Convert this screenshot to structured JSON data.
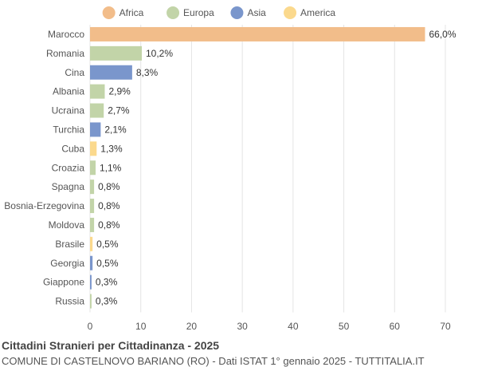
{
  "chart_data": {
    "type": "bar",
    "orientation": "horizontal",
    "title": "Cittadini Stranieri per Cittadinanza - 2025",
    "subtitle": "COMUNE DI CASTELNOVO BARIANO (RO) - Dati ISTAT 1° gennaio 2025 - TUTTITALIA.IT",
    "categories": [
      "Marocco",
      "Romania",
      "Cina",
      "Albania",
      "Ucraina",
      "Turchia",
      "Cuba",
      "Croazia",
      "Spagna",
      "Bosnia-Erzegovina",
      "Moldova",
      "Brasile",
      "Georgia",
      "Giappone",
      "Russia"
    ],
    "values": [
      66.0,
      10.2,
      8.3,
      2.9,
      2.7,
      2.1,
      1.3,
      1.1,
      0.8,
      0.8,
      0.8,
      0.5,
      0.5,
      0.3,
      0.3
    ],
    "value_labels": [
      "66,0%",
      "10,2%",
      "8,3%",
      "2,9%",
      "2,7%",
      "2,1%",
      "1,3%",
      "1,1%",
      "0,8%",
      "0,8%",
      "0,8%",
      "0,5%",
      "0,5%",
      "0,3%",
      "0,3%"
    ],
    "groups": [
      "Africa",
      "Europa",
      "Asia",
      "Europa",
      "Europa",
      "Asia",
      "America",
      "Europa",
      "Europa",
      "Europa",
      "Europa",
      "America",
      "Asia",
      "Asia",
      "Europa"
    ],
    "legend": [
      {
        "name": "Africa",
        "color": "#f2bd8a"
      },
      {
        "name": "Europa",
        "color": "#c2d4a8"
      },
      {
        "name": "Asia",
        "color": "#7a96cc"
      },
      {
        "name": "America",
        "color": "#fbd98d"
      }
    ],
    "xlim": [
      0,
      70
    ],
    "xticks": [
      0,
      10,
      20,
      30,
      40,
      50,
      60,
      70
    ],
    "grid": true,
    "legend_position": "top"
  }
}
